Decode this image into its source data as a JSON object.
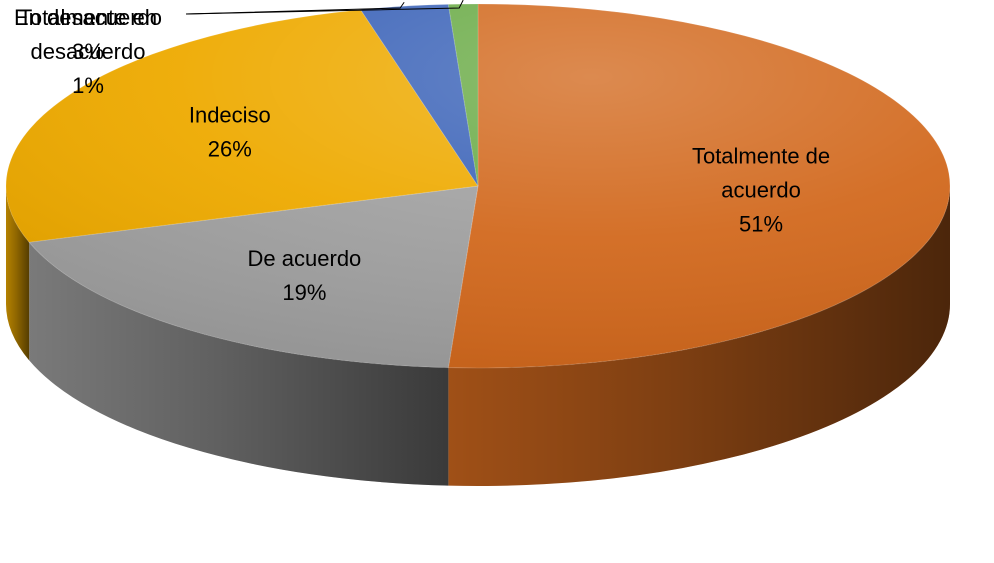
{
  "chart_data": {
    "type": "pie",
    "style": "3d",
    "start_angle_deg": 0,
    "direction": "clockwise",
    "slices": [
      {
        "label": "Totalmente de acuerdo",
        "label_lines": [
          "Totalmente de",
          "acuerdo"
        ],
        "value": 51,
        "percent_label": "51%",
        "color": "#D2691E"
      },
      {
        "label": "De acuerdo",
        "label_lines": [
          "De acuerdo"
        ],
        "value": 19,
        "percent_label": "19%",
        "color": "#A0A0A0"
      },
      {
        "label": "Indeciso",
        "label_lines": [
          "Indeciso"
        ],
        "value": 26,
        "percent_label": "26%",
        "color": "#EEAA00"
      },
      {
        "label": "En desacuerdo",
        "label_lines": [
          "En desacuerdo"
        ],
        "value": 3,
        "percent_label": "3%",
        "color": "#3B63B8"
      },
      {
        "label": "Totalmente en desacuerdo",
        "label_lines": [
          "Totalmente en",
          "desacuerdo"
        ],
        "value": 1,
        "percent_label": "1%",
        "color": "#6AAB46"
      }
    ]
  }
}
